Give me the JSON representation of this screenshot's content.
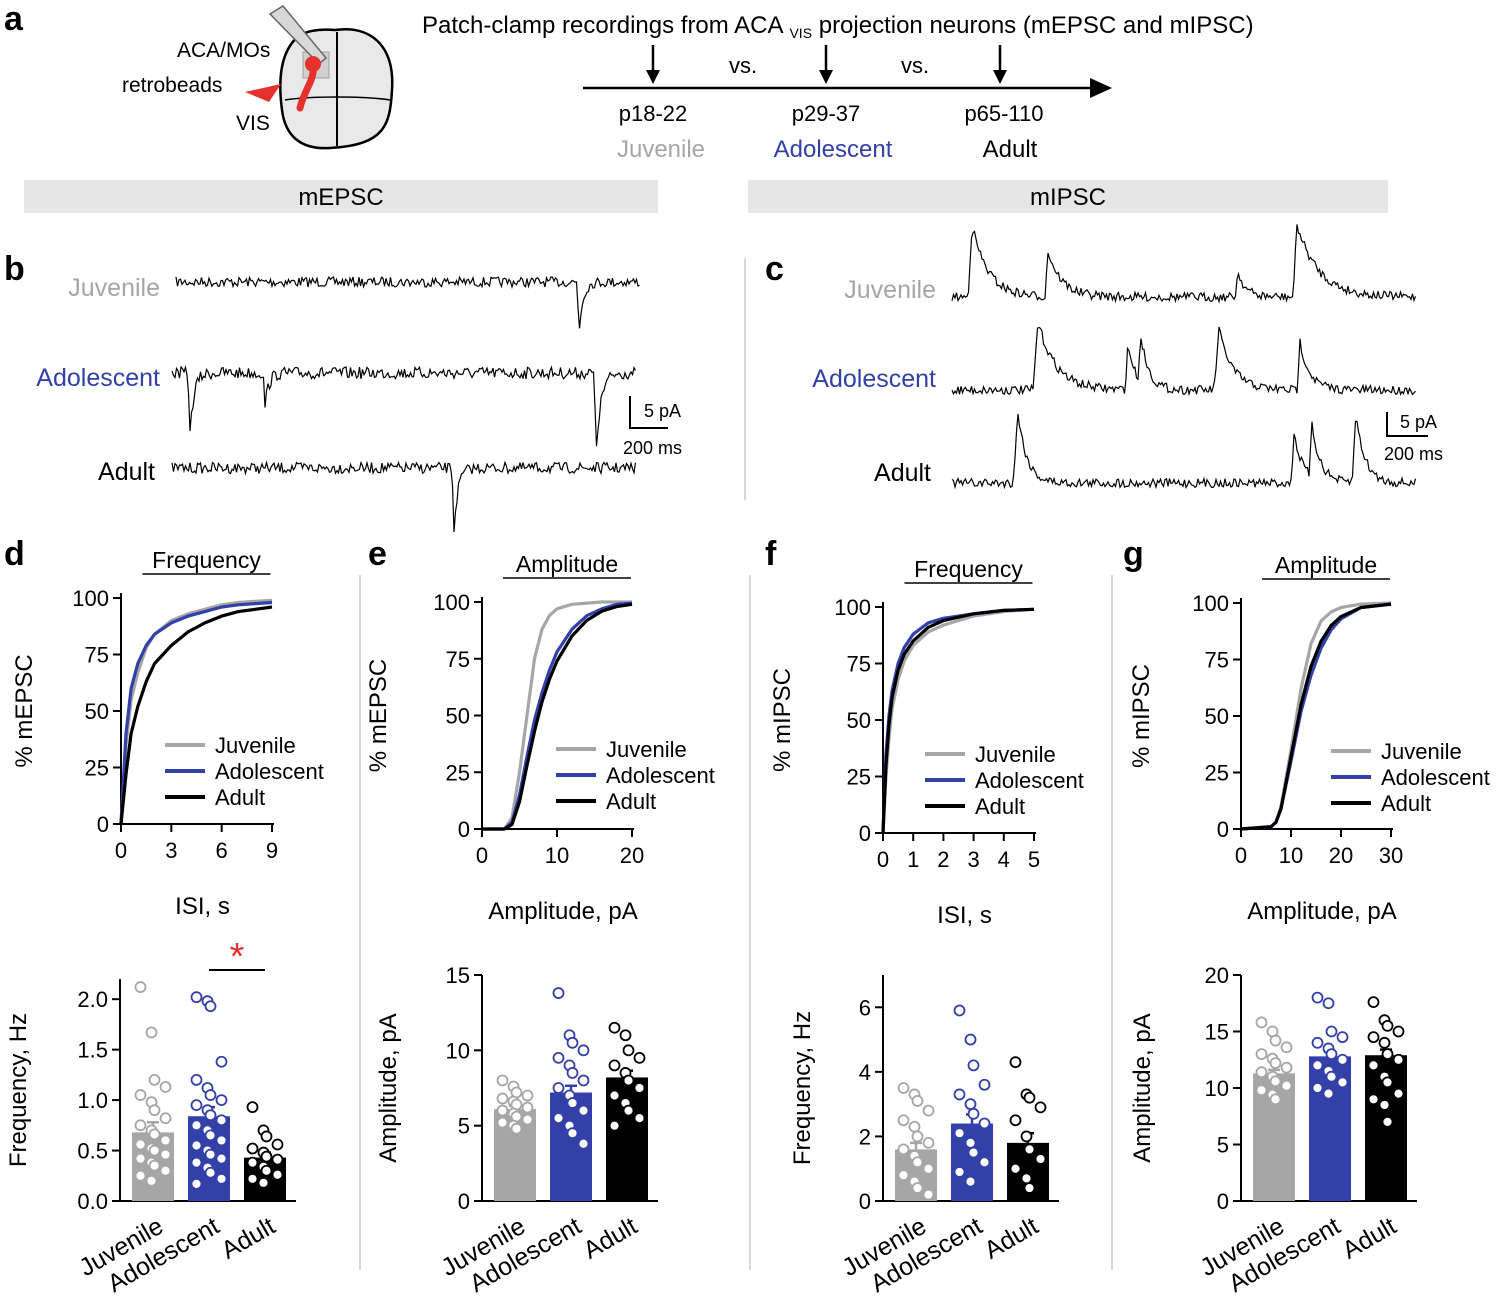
{
  "colors": {
    "juvenile": "#a6a6a6",
    "adolescent": "#3340a8",
    "adult": "#000000",
    "star": "#e5322d",
    "retrobeads": "#e5322d",
    "band": "#e6e6e6"
  },
  "panels": {
    "a": "a",
    "b": "b",
    "c": "c",
    "d": "d",
    "e": "e",
    "f": "f",
    "g": "g"
  },
  "panel_a": {
    "title_prefix": "Patch-clamp recordings from ACA",
    "title_sub": "VIS",
    "title_suffix": " projection neurons (mEPSC and mIPSC)",
    "vs": "vs.",
    "labels": {
      "aca": "ACA/MOs",
      "retrobeads": "retrobeads",
      "vis": "VIS"
    },
    "ages": [
      {
        "range": "p18-22",
        "group": "Juvenile"
      },
      {
        "range": "p29-37",
        "group": "Adolescent"
      },
      {
        "range": "p65-110",
        "group": "Adult"
      }
    ]
  },
  "sections": {
    "mepsc": "mEPSC",
    "mipsc": "mIPSC"
  },
  "traces": {
    "groups": [
      "Juvenile",
      "Adolescent",
      "Adult"
    ],
    "scale_current": "5 pA",
    "scale_time": "200 ms"
  },
  "chart_data": [
    {
      "id": "d-cdf",
      "type": "line",
      "title": "Frequency",
      "xlabel": "ISI, s",
      "ylabel": "% mEPSC",
      "xlim": [
        0,
        9
      ],
      "ylim": [
        0,
        100
      ],
      "xticks": [
        0,
        3,
        6,
        9
      ],
      "yticks": [
        0,
        25,
        50,
        75,
        100
      ],
      "series": [
        {
          "name": "Juvenile",
          "x": [
            0,
            0.3,
            0.6,
            1,
            1.5,
            2,
            3,
            4,
            5,
            6,
            7,
            8,
            9
          ],
          "y": [
            0,
            35,
            55,
            67,
            78,
            84,
            90,
            93,
            95,
            97,
            98,
            98.5,
            99
          ]
        },
        {
          "name": "Adolescent",
          "x": [
            0,
            0.3,
            0.6,
            1,
            1.5,
            2,
            3,
            4,
            5,
            6,
            7,
            8,
            9
          ],
          "y": [
            0,
            40,
            60,
            71,
            79,
            84,
            89,
            92,
            94,
            96,
            97,
            97.5,
            98
          ]
        },
        {
          "name": "Adult",
          "x": [
            0,
            0.3,
            0.6,
            1,
            1.5,
            2,
            3,
            4,
            5,
            6,
            7,
            8,
            9
          ],
          "y": [
            0,
            22,
            40,
            52,
            63,
            71,
            79,
            85,
            89,
            92,
            94,
            95,
            96
          ]
        }
      ]
    },
    {
      "id": "d-bar",
      "type": "bar",
      "ylabel": "Frequency, Hz",
      "ylim": [
        0,
        2.2
      ],
      "yticks": [
        0,
        0.5,
        1,
        1.5,
        2
      ],
      "ytick_labels": [
        "0.0",
        "0.5",
        "1.0",
        "1.5",
        "2.0"
      ],
      "categories": [
        "Juvenile",
        "Adolescent",
        "Adult"
      ],
      "values": [
        0.68,
        0.84,
        0.43
      ],
      "errors": [
        0.1,
        0.09,
        0.05
      ],
      "points": [
        [
          2.12,
          1.67,
          1.2,
          1.13,
          1.05,
          0.98,
          0.9,
          0.82,
          0.75,
          0.7,
          0.66,
          0.6,
          0.56,
          0.52,
          0.5,
          0.46,
          0.42,
          0.38,
          0.35,
          0.3,
          0.25,
          0.2
        ],
        [
          2.02,
          1.98,
          1.93,
          1.38,
          1.2,
          1.12,
          1.05,
          1.0,
          0.95,
          0.9,
          0.85,
          0.8,
          0.75,
          0.7,
          0.65,
          0.6,
          0.55,
          0.5,
          0.46,
          0.42,
          0.38,
          0.33,
          0.28,
          0.22,
          0.17
        ],
        [
          0.93,
          0.7,
          0.64,
          0.56,
          0.52,
          0.48,
          0.44,
          0.41,
          0.38,
          0.34,
          0.3,
          0.26,
          0.22,
          0.18
        ]
      ],
      "significance": "*"
    },
    {
      "id": "e-cdf",
      "type": "line",
      "title": "Amplitude",
      "xlabel": "Amplitude, pA",
      "ylabel": "% mEPSC",
      "xlim": [
        0,
        20
      ],
      "ylim": [
        0,
        100
      ],
      "xticks": [
        0,
        10,
        20
      ],
      "yticks": [
        0,
        25,
        50,
        75,
        100
      ],
      "series": [
        {
          "name": "Juvenile",
          "x": [
            0,
            3,
            4,
            5,
            6,
            7,
            8,
            9,
            10,
            12,
            14,
            16,
            20
          ],
          "y": [
            0,
            0,
            5,
            25,
            50,
            75,
            88,
            94,
            97,
            99,
            99.5,
            100,
            100
          ]
        },
        {
          "name": "Adolescent",
          "x": [
            0,
            3,
            4,
            5,
            6,
            7,
            8,
            9,
            10,
            12,
            14,
            16,
            18,
            20
          ],
          "y": [
            0,
            0,
            3,
            15,
            32,
            48,
            60,
            70,
            78,
            88,
            94,
            97,
            99,
            99.5
          ]
        },
        {
          "name": "Adult",
          "x": [
            0,
            3,
            4,
            5,
            6,
            7,
            8,
            9,
            10,
            12,
            14,
            16,
            18,
            20
          ],
          "y": [
            0,
            0,
            2,
            12,
            28,
            43,
            56,
            66,
            74,
            85,
            92,
            96,
            98,
            99
          ]
        }
      ]
    },
    {
      "id": "e-bar",
      "type": "bar",
      "ylabel": "Amplitude, pA",
      "ylim": [
        0,
        15
      ],
      "yticks": [
        0,
        5,
        10,
        15
      ],
      "ytick_labels": [
        "0",
        "5",
        "10",
        "15"
      ],
      "categories": [
        "Juvenile",
        "Adolescent",
        "Adult"
      ],
      "values": [
        6.1,
        7.2,
        8.2
      ],
      "errors": [
        0.2,
        0.45,
        0.45
      ],
      "points": [
        [
          8.0,
          7.6,
          7.2,
          7.0,
          6.8,
          6.6,
          6.4,
          6.2,
          6.0,
          5.8,
          5.6,
          5.4,
          5.2,
          5.0,
          4.8
        ],
        [
          13.8,
          11.0,
          10.5,
          10.0,
          9.5,
          9.0,
          8.5,
          8.0,
          7.5,
          7.0,
          6.5,
          6.0,
          5.5,
          5.0,
          4.5,
          3.8
        ],
        [
          11.5,
          11.0,
          10.0,
          9.5,
          9.0,
          8.5,
          8.0,
          7.5,
          7.0,
          6.5,
          6.0,
          5.5,
          5.0
        ]
      ]
    },
    {
      "id": "f-cdf",
      "type": "line",
      "title": "Frequency",
      "xlabel": "ISI, s",
      "ylabel": "% mIPSC",
      "xlim": [
        0,
        5
      ],
      "ylim": [
        0,
        100
      ],
      "xticks": [
        0,
        1,
        2,
        3,
        4,
        5
      ],
      "yticks": [
        0,
        25,
        50,
        75,
        100
      ],
      "series": [
        {
          "name": "Juvenile",
          "x": [
            0,
            0.1,
            0.2,
            0.3,
            0.5,
            0.7,
            1,
            1.5,
            2,
            3,
            4,
            5
          ],
          "y": [
            0,
            25,
            42,
            55,
            68,
            76,
            83,
            89,
            92,
            96,
            98,
            99
          ]
        },
        {
          "name": "Adolescent",
          "x": [
            0,
            0.1,
            0.2,
            0.3,
            0.5,
            0.7,
            1,
            1.5,
            2,
            3,
            4,
            5
          ],
          "y": [
            0,
            35,
            52,
            63,
            75,
            82,
            88,
            93,
            95,
            97,
            98.5,
            99
          ]
        },
        {
          "name": "Adult",
          "x": [
            0,
            0.1,
            0.2,
            0.3,
            0.5,
            0.7,
            1,
            1.5,
            2,
            3,
            4,
            5
          ],
          "y": [
            0,
            30,
            48,
            60,
            72,
            79,
            85,
            91,
            94,
            97,
            98.5,
            99
          ]
        }
      ]
    },
    {
      "id": "f-bar",
      "type": "bar",
      "ylabel": "Frequency, Hz",
      "ylim": [
        0,
        7
      ],
      "yticks": [
        0,
        2,
        4,
        6
      ],
      "ytick_labels": [
        "0",
        "2",
        "4",
        "6"
      ],
      "categories": [
        "Juvenile",
        "Adolescent",
        "Adult"
      ],
      "values": [
        1.6,
        2.4,
        1.8
      ],
      "errors": [
        0.2,
        0.28,
        0.3
      ],
      "points": [
        [
          3.5,
          3.3,
          3.1,
          2.8,
          2.5,
          2.3,
          2.0,
          1.8,
          1.6,
          1.4,
          1.2,
          1.0,
          0.8,
          0.6,
          0.4,
          0.2
        ],
        [
          5.9,
          5.0,
          4.2,
          3.6,
          3.3,
          3.0,
          2.7,
          2.4,
          2.1,
          1.8,
          1.5,
          1.2,
          0.9,
          0.6
        ],
        [
          4.3,
          3.3,
          3.2,
          2.9,
          2.5,
          2.0,
          1.6,
          1.3,
          1.0,
          0.7,
          0.4
        ]
      ]
    },
    {
      "id": "g-cdf",
      "type": "line",
      "title": "Amplitude",
      "xlabel": "Amplitude, pA",
      "ylabel": "% mIPSC",
      "xlim": [
        0,
        30
      ],
      "ylim": [
        0,
        100
      ],
      "xticks": [
        0,
        10,
        20,
        30
      ],
      "yticks": [
        0,
        25,
        50,
        75,
        100
      ],
      "series": [
        {
          "name": "Juvenile",
          "x": [
            0,
            6,
            7,
            8,
            10,
            12,
            14,
            16,
            18,
            20,
            24,
            30
          ],
          "y": [
            0,
            1,
            3,
            10,
            35,
            62,
            82,
            92,
            96,
            98,
            99.5,
            100
          ]
        },
        {
          "name": "Adolescent",
          "x": [
            0,
            6,
            7,
            8,
            10,
            12,
            14,
            16,
            18,
            20,
            24,
            30
          ],
          "y": [
            0,
            1,
            3,
            9,
            30,
            52,
            68,
            80,
            88,
            93,
            98,
            99.5
          ]
        },
        {
          "name": "Adult",
          "x": [
            0,
            6,
            7,
            8,
            10,
            12,
            14,
            16,
            18,
            20,
            24,
            30
          ],
          "y": [
            0,
            1,
            3,
            9,
            32,
            55,
            72,
            83,
            90,
            94,
            98,
            99.5
          ]
        }
      ]
    },
    {
      "id": "g-bar",
      "type": "bar",
      "ylabel": "Amplitude, pA",
      "ylim": [
        0,
        20
      ],
      "yticks": [
        0,
        5,
        10,
        15,
        20
      ],
      "ytick_labels": [
        "0",
        "5",
        "10",
        "15",
        "20"
      ],
      "categories": [
        "Juvenile",
        "Adolescent",
        "Adult"
      ],
      "values": [
        11.3,
        12.8,
        12.9
      ],
      "errors": [
        0.3,
        0.4,
        0.5
      ],
      "points": [
        [
          15.8,
          15.0,
          14.2,
          13.6,
          13.0,
          12.6,
          12.2,
          11.8,
          11.4,
          11.0,
          10.6,
          10.2,
          9.8,
          9.4,
          9.0
        ],
        [
          18.0,
          17.5,
          15.0,
          14.5,
          14.0,
          13.5,
          13.0,
          12.5,
          12.0,
          11.5,
          11.0,
          10.5,
          10.0,
          9.5
        ],
        [
          17.6,
          16.0,
          15.5,
          15.0,
          14.5,
          14.0,
          13.0,
          12.5,
          12.0,
          11.0,
          10.5,
          9.5,
          9.0,
          8.5,
          7.0
        ]
      ]
    }
  ]
}
